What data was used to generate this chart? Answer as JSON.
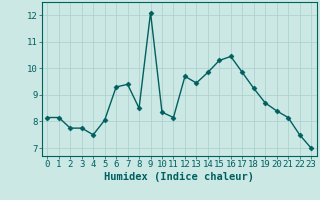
{
  "x": [
    0,
    1,
    2,
    3,
    4,
    5,
    6,
    7,
    8,
    9,
    10,
    11,
    12,
    13,
    14,
    15,
    16,
    17,
    18,
    19,
    20,
    21,
    22,
    23
  ],
  "y": [
    8.15,
    8.15,
    7.75,
    7.75,
    7.5,
    8.05,
    9.3,
    9.4,
    8.5,
    12.1,
    8.35,
    8.15,
    9.7,
    9.45,
    9.85,
    10.3,
    10.45,
    9.85,
    9.25,
    8.7,
    8.4,
    8.15,
    7.5,
    7.0
  ],
  "line_color": "#006060",
  "marker": "D",
  "marker_size": 2.5,
  "line_width": 1.0,
  "bg_color": "#cce8e4",
  "grid_color": "#aacfcb",
  "xlabel": "Humidex (Indice chaleur)",
  "xlabel_fontsize": 7.5,
  "tick_color": "#006060",
  "tick_fontsize": 6.5,
  "xlim": [
    -0.5,
    23.5
  ],
  "ylim": [
    6.7,
    12.5
  ],
  "yticks": [
    7,
    8,
    9,
    10,
    11,
    12
  ],
  "xticks": [
    0,
    1,
    2,
    3,
    4,
    5,
    6,
    7,
    8,
    9,
    10,
    11,
    12,
    13,
    14,
    15,
    16,
    17,
    18,
    19,
    20,
    21,
    22,
    23
  ]
}
